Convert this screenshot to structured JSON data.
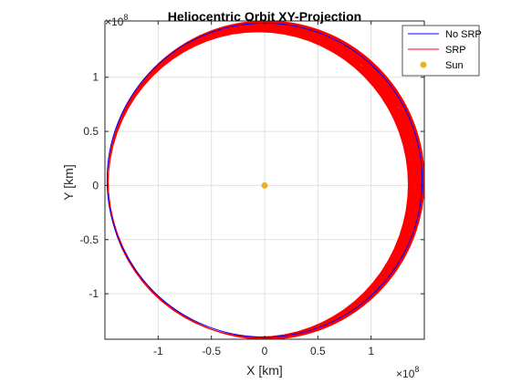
{
  "chart_data": {
    "type": "line",
    "title": "Heliocentric Orbit XY-Projection",
    "xlabel": "X [km]",
    "ylabel": "Y [km]",
    "xlim": [
      -150000000.0,
      150000000.0
    ],
    "ylim": [
      -142000000.0,
      152000000.0
    ],
    "x_multiplier": "10",
    "y_multiplier": "10",
    "multiplier_exponent": "8",
    "x_ticks": [
      -1,
      -0.5,
      0,
      0.5,
      1
    ],
    "x_tick_labels": [
      "-1",
      "-0.5",
      "0",
      "0.5",
      "1"
    ],
    "y_ticks": [
      -1,
      -0.5,
      0,
      0.5,
      1
    ],
    "y_tick_labels": [
      "-1",
      "-0.5",
      "0",
      "0.5",
      "1"
    ],
    "grid": true,
    "legend_position": "top-right",
    "series": [
      {
        "name": "No SRP",
        "color": "#0000ff",
        "line_width": 1,
        "orbit": {
          "x": [
            -148000000.0,
            148000000.0
          ],
          "y": [
            -140000000.0,
            150000000.0
          ]
        }
      },
      {
        "name": "SRP",
        "color": "#ff0000",
        "line_width": 1,
        "orbit_inner": {
          "x": [
            -147000000.0,
            135000000.0
          ],
          "y": [
            -140000000.0,
            142000000.0
          ]
        },
        "orbit_outer": {
          "x": [
            -147000000.0,
            150000000.0
          ],
          "y": [
            -142000000.0,
            152000000.0
          ]
        }
      },
      {
        "name": "Sun",
        "color": "#edb120",
        "marker": "o",
        "x": [
          0
        ],
        "y": [
          0
        ]
      }
    ]
  }
}
